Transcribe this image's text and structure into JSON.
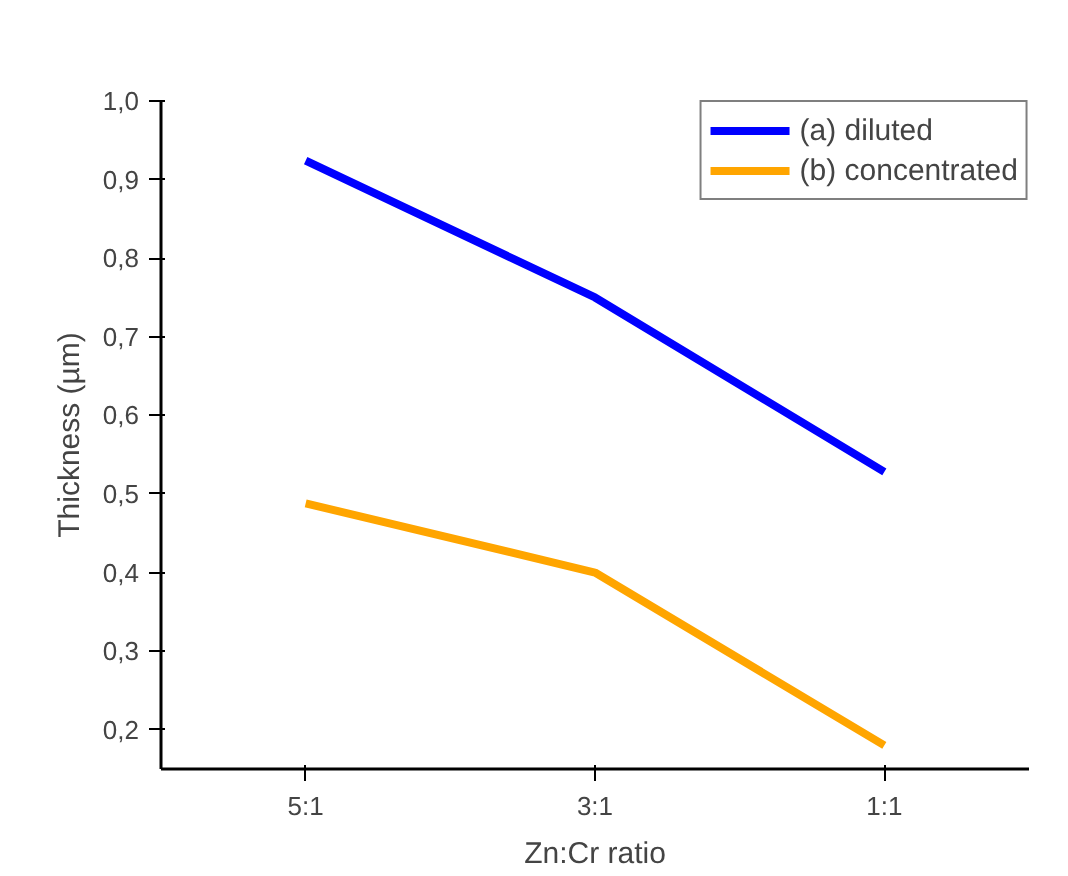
{
  "chart_data": {
    "type": "line",
    "xlabel": "Zn:Cr ratio",
    "ylabel": "Thickness (µm)",
    "categories": [
      "5:1",
      "3:1",
      "1:1"
    ],
    "series": [
      {
        "name": "(a) diluted",
        "color": "#0000ff",
        "values": [
          0.924,
          0.75,
          0.528
        ]
      },
      {
        "name": "(b) concentrated",
        "color": "#ffa500",
        "values": [
          0.488,
          0.4,
          0.18
        ]
      }
    ],
    "ylim": [
      0.15,
      1.0
    ],
    "yticks": [
      {
        "value": 0.2,
        "label": "0,2"
      },
      {
        "value": 0.3,
        "label": "0,3"
      },
      {
        "value": 0.4,
        "label": "0,4"
      },
      {
        "value": 0.5,
        "label": "0,5"
      },
      {
        "value": 0.6,
        "label": "0,6"
      },
      {
        "value": 0.7,
        "label": "0,7"
      },
      {
        "value": 0.8,
        "label": "0,8"
      },
      {
        "value": 0.9,
        "label": "0,9"
      },
      {
        "value": 1.0,
        "label": "1,0"
      }
    ],
    "grid": false,
    "legend": "top right",
    "line_style": "solid",
    "marker": "none"
  }
}
